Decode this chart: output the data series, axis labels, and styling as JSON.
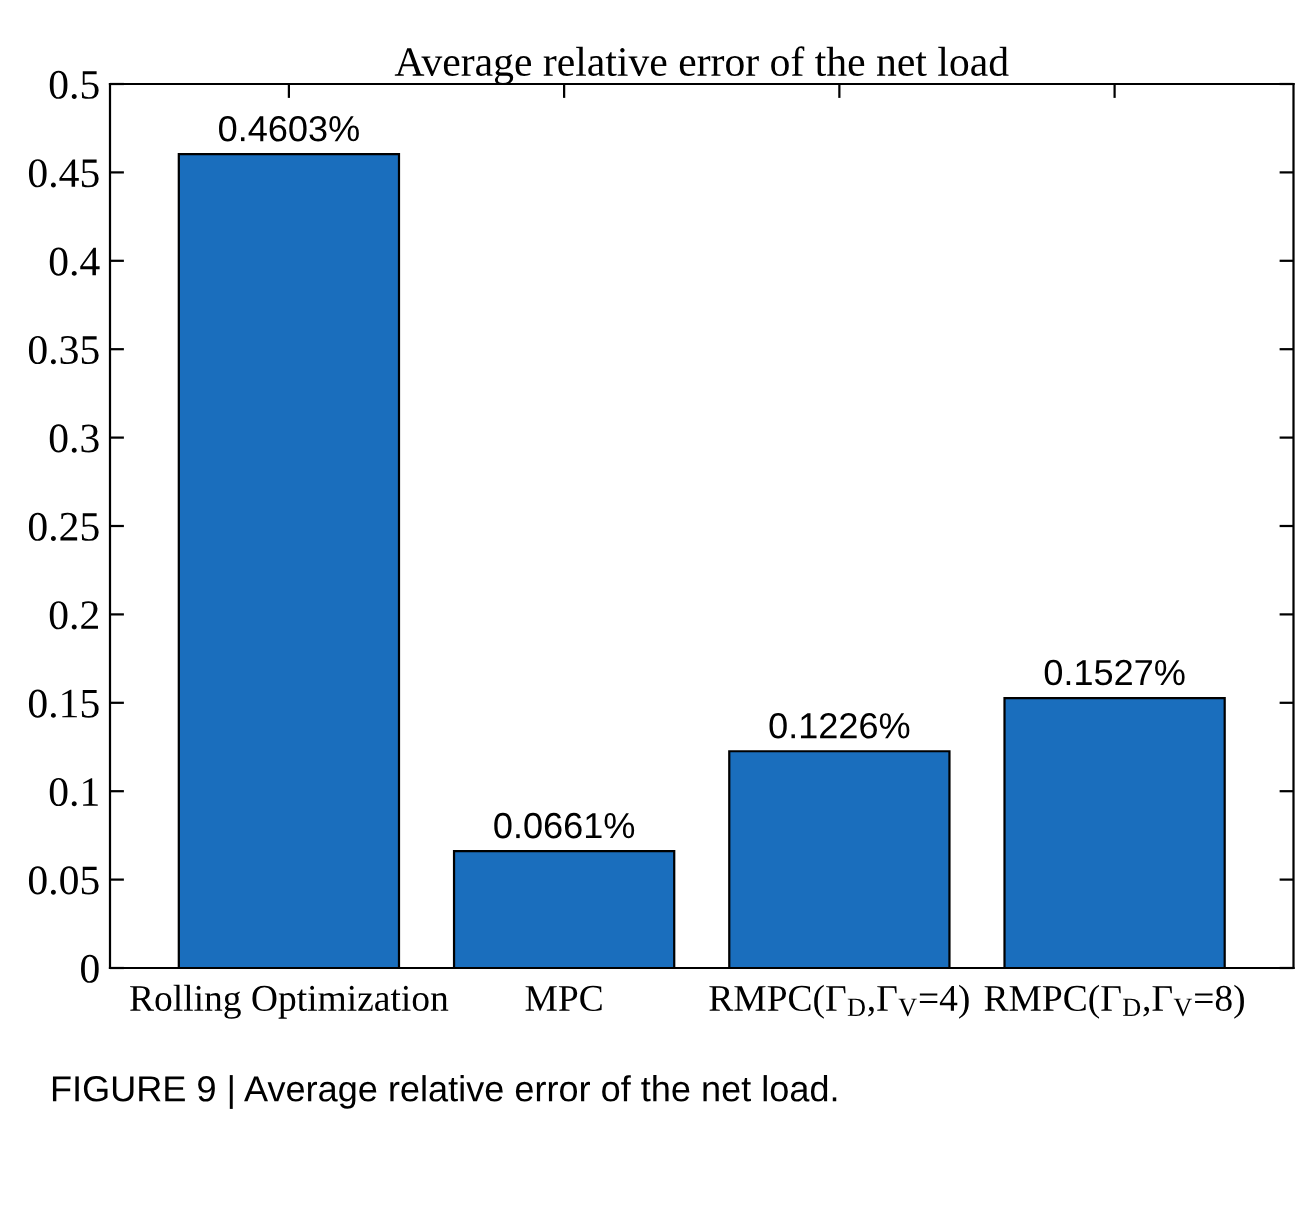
{
  "chart_data": {
    "type": "bar",
    "title": "Average relative error of the net load",
    "categories": [
      "Rolling Optimization",
      "MPC",
      "RMPC(Γ$_{D}$,Γ$_{V}$=4)",
      "RMPC(Γ$_{D}$,Γ$_{V}$=8)"
    ],
    "values": [
      0.4603,
      0.0661,
      0.1226,
      0.1527
    ],
    "value_labels": [
      "0.4603%",
      "0.0661%",
      "0.1226%",
      "0.1527%"
    ],
    "color": "#1a6ebd",
    "ylim": [
      0,
      0.5
    ],
    "yticks": [
      0,
      0.05,
      0.1,
      0.15,
      0.2,
      0.25,
      0.3,
      0.35,
      0.4,
      0.45,
      0.5
    ],
    "grid": false,
    "annotations": [
      "FIGURE 9 | Average relative error of the net load."
    ]
  }
}
